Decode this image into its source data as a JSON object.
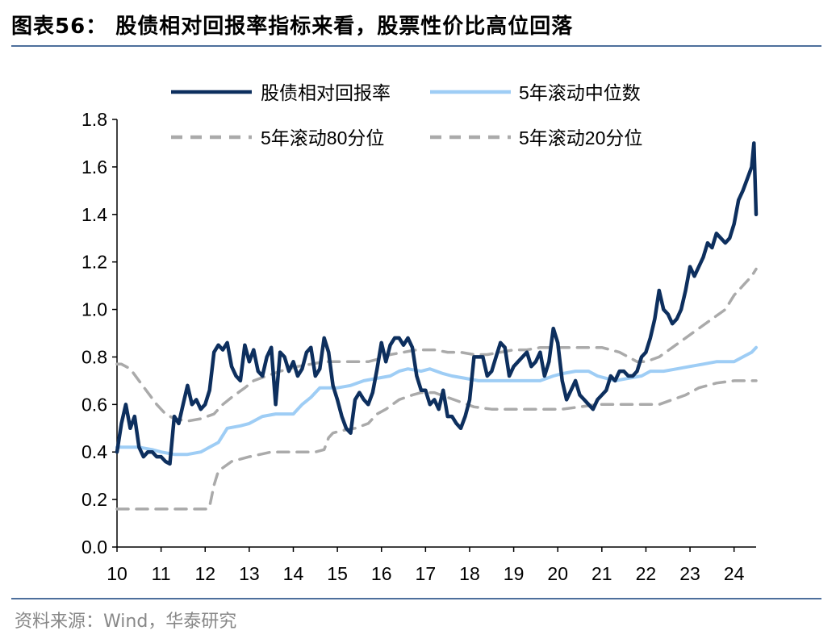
{
  "header": {
    "title": "图表56：  股债相对回报率指标来看，股票性价比高位回落"
  },
  "footer": {
    "source": "资料来源：Wind，华泰研究"
  },
  "chart_data": {
    "type": "line",
    "xlabel": "",
    "ylabel": "",
    "ylim": [
      0.0,
      1.8
    ],
    "xlim": [
      2010.0,
      2024.5
    ],
    "y_ticks": [
      "0.0",
      "0.2",
      "0.4",
      "0.6",
      "0.8",
      "1.0",
      "1.2",
      "1.4",
      "1.6",
      "1.8"
    ],
    "x_ticks": [
      "10",
      "11",
      "12",
      "13",
      "14",
      "15",
      "16",
      "17",
      "18",
      "19",
      "20",
      "21",
      "22",
      "23",
      "24"
    ],
    "grid": false,
    "legend_position": "top",
    "series": [
      {
        "name": "股债相对回报率",
        "color": "#0d2f5e",
        "style": "solid",
        "x": [
          2010.0,
          2010.1,
          2010.2,
          2010.3,
          2010.4,
          2010.5,
          2010.6,
          2010.7,
          2010.8,
          2010.9,
          2011.0,
          2011.1,
          2011.2,
          2011.3,
          2011.4,
          2011.5,
          2011.6,
          2011.7,
          2011.8,
          2011.9,
          2012.0,
          2012.1,
          2012.2,
          2012.3,
          2012.4,
          2012.5,
          2012.6,
          2012.7,
          2012.8,
          2012.9,
          2013.0,
          2013.1,
          2013.2,
          2013.3,
          2013.4,
          2013.5,
          2013.6,
          2013.7,
          2013.8,
          2013.9,
          2014.0,
          2014.1,
          2014.2,
          2014.3,
          2014.4,
          2014.5,
          2014.6,
          2014.7,
          2014.8,
          2014.9,
          2015.0,
          2015.1,
          2015.2,
          2015.3,
          2015.4,
          2015.5,
          2015.6,
          2015.7,
          2015.8,
          2015.9,
          2016.0,
          2016.1,
          2016.2,
          2016.3,
          2016.4,
          2016.5,
          2016.6,
          2016.7,
          2016.8,
          2016.9,
          2017.0,
          2017.1,
          2017.2,
          2017.3,
          2017.4,
          2017.5,
          2017.6,
          2017.7,
          2017.8,
          2017.9,
          2018.0,
          2018.1,
          2018.2,
          2018.3,
          2018.4,
          2018.5,
          2018.6,
          2018.7,
          2018.8,
          2018.9,
          2019.0,
          2019.1,
          2019.2,
          2019.3,
          2019.4,
          2019.5,
          2019.6,
          2019.7,
          2019.8,
          2019.9,
          2020.0,
          2020.1,
          2020.2,
          2020.3,
          2020.4,
          2020.5,
          2020.6,
          2020.7,
          2020.8,
          2020.9,
          2021.0,
          2021.1,
          2021.2,
          2021.3,
          2021.4,
          2021.5,
          2021.6,
          2021.7,
          2021.8,
          2021.9,
          2022.0,
          2022.1,
          2022.2,
          2022.3,
          2022.4,
          2022.5,
          2022.6,
          2022.7,
          2022.8,
          2022.9,
          2023.0,
          2023.1,
          2023.2,
          2023.3,
          2023.4,
          2023.5,
          2023.6,
          2023.7,
          2023.8,
          2023.9,
          2024.0,
          2024.1,
          2024.2,
          2024.3,
          2024.4,
          2024.45,
          2024.5
        ],
        "values": [
          0.4,
          0.52,
          0.6,
          0.5,
          0.55,
          0.42,
          0.38,
          0.4,
          0.4,
          0.38,
          0.38,
          0.36,
          0.35,
          0.55,
          0.52,
          0.6,
          0.68,
          0.6,
          0.62,
          0.58,
          0.6,
          0.66,
          0.82,
          0.85,
          0.83,
          0.86,
          0.76,
          0.72,
          0.7,
          0.85,
          0.78,
          0.83,
          0.74,
          0.72,
          0.8,
          0.84,
          0.6,
          0.82,
          0.8,
          0.74,
          0.78,
          0.72,
          0.75,
          0.82,
          0.84,
          0.72,
          0.75,
          0.88,
          0.82,
          0.68,
          0.62,
          0.55,
          0.5,
          0.48,
          0.62,
          0.65,
          0.62,
          0.6,
          0.65,
          0.75,
          0.86,
          0.78,
          0.85,
          0.88,
          0.88,
          0.85,
          0.88,
          0.84,
          0.72,
          0.66,
          0.66,
          0.6,
          0.62,
          0.58,
          0.66,
          0.55,
          0.55,
          0.52,
          0.5,
          0.55,
          0.62,
          0.8,
          0.8,
          0.8,
          0.72,
          0.74,
          0.8,
          0.86,
          0.84,
          0.72,
          0.76,
          0.78,
          0.8,
          0.82,
          0.76,
          0.78,
          0.82,
          0.72,
          0.78,
          0.92,
          0.86,
          0.7,
          0.62,
          0.66,
          0.7,
          0.64,
          0.62,
          0.6,
          0.58,
          0.62,
          0.64,
          0.66,
          0.72,
          0.7,
          0.74,
          0.74,
          0.72,
          0.72,
          0.74,
          0.8,
          0.82,
          0.88,
          0.96,
          1.08,
          1.0,
          0.98,
          0.94,
          0.96,
          1.0,
          1.08,
          1.18,
          1.14,
          1.18,
          1.22,
          1.28,
          1.26,
          1.32,
          1.3,
          1.28,
          1.3,
          1.36,
          1.46,
          1.5,
          1.55,
          1.6,
          1.7,
          1.4
        ]
      },
      {
        "name": "5年滚动中位数",
        "color": "#9ecdf5",
        "style": "solid",
        "x": [
          2010.0,
          2010.2,
          2010.5,
          2010.8,
          2011.0,
          2011.3,
          2011.6,
          2011.9,
          2012.1,
          2012.3,
          2012.5,
          2012.8,
          2013.0,
          2013.3,
          2013.6,
          2013.8,
          2014.0,
          2014.2,
          2014.4,
          2014.6,
          2014.8,
          2015.0,
          2015.3,
          2015.6,
          2015.9,
          2016.2,
          2016.4,
          2016.6,
          2016.9,
          2017.1,
          2017.4,
          2017.6,
          2017.9,
          2018.2,
          2018.5,
          2018.8,
          2019.0,
          2019.3,
          2019.6,
          2019.9,
          2020.1,
          2020.4,
          2020.7,
          2020.9,
          2021.1,
          2021.3,
          2021.6,
          2021.9,
          2022.1,
          2022.4,
          2022.7,
          2023.0,
          2023.3,
          2023.6,
          2023.9,
          2024.0,
          2024.2,
          2024.4,
          2024.5
        ],
        "values": [
          0.42,
          0.42,
          0.42,
          0.41,
          0.4,
          0.39,
          0.39,
          0.4,
          0.42,
          0.44,
          0.5,
          0.51,
          0.52,
          0.55,
          0.56,
          0.56,
          0.56,
          0.6,
          0.63,
          0.67,
          0.67,
          0.67,
          0.68,
          0.7,
          0.71,
          0.72,
          0.74,
          0.75,
          0.74,
          0.75,
          0.73,
          0.72,
          0.71,
          0.7,
          0.7,
          0.7,
          0.7,
          0.7,
          0.7,
          0.72,
          0.73,
          0.74,
          0.74,
          0.72,
          0.71,
          0.7,
          0.71,
          0.72,
          0.74,
          0.74,
          0.75,
          0.76,
          0.77,
          0.78,
          0.78,
          0.78,
          0.8,
          0.82,
          0.84
        ]
      },
      {
        "name": "5年滚动80分位",
        "color": "#aaaaaa",
        "style": "dashed",
        "x": [
          2010.0,
          2010.1,
          2010.3,
          2010.5,
          2010.7,
          2010.9,
          2011.1,
          2011.3,
          2011.6,
          2011.9,
          2012.2,
          2012.4,
          2012.6,
          2012.9,
          2013.1,
          2013.4,
          2013.7,
          2013.9,
          2014.1,
          2014.4,
          2014.7,
          2015.0,
          2015.3,
          2015.7,
          2015.9,
          2016.2,
          2016.5,
          2016.8,
          2017.0,
          2017.2,
          2017.5,
          2017.8,
          2018.1,
          2018.4,
          2018.7,
          2019.0,
          2019.3,
          2019.6,
          2019.9,
          2020.2,
          2020.5,
          2020.8,
          2021.0,
          2021.2,
          2021.4,
          2021.6,
          2021.8,
          2022.0,
          2022.3,
          2022.6,
          2022.9,
          2023.2,
          2023.5,
          2023.8,
          2024.0,
          2024.2,
          2024.4,
          2024.5
        ],
        "values": [
          0.77,
          0.77,
          0.75,
          0.7,
          0.65,
          0.6,
          0.56,
          0.54,
          0.53,
          0.54,
          0.56,
          0.6,
          0.63,
          0.67,
          0.7,
          0.72,
          0.74,
          0.75,
          0.76,
          0.77,
          0.78,
          0.78,
          0.78,
          0.78,
          0.79,
          0.81,
          0.82,
          0.83,
          0.83,
          0.83,
          0.82,
          0.82,
          0.81,
          0.81,
          0.82,
          0.83,
          0.83,
          0.84,
          0.84,
          0.84,
          0.84,
          0.84,
          0.84,
          0.83,
          0.82,
          0.8,
          0.78,
          0.78,
          0.8,
          0.84,
          0.88,
          0.92,
          0.96,
          1.0,
          1.06,
          1.1,
          1.14,
          1.17
        ]
      },
      {
        "name": "5年滚动20分位",
        "color": "#aaaaaa",
        "style": "dashed",
        "x": [
          2010.0,
          2010.5,
          2011.0,
          2011.5,
          2011.9,
          2012.05,
          2012.1,
          2012.2,
          2012.3,
          2012.6,
          2013.0,
          2013.5,
          2014.0,
          2014.5,
          2014.7,
          2014.8,
          2014.9,
          2015.1,
          2015.4,
          2015.7,
          2015.9,
          2016.1,
          2016.4,
          2016.7,
          2016.9,
          2017.2,
          2017.5,
          2017.8,
          2018.1,
          2018.5,
          2018.9,
          2019.3,
          2019.7,
          2020.1,
          2020.5,
          2020.9,
          2021.3,
          2021.7,
          2022.0,
          2022.3,
          2022.6,
          2022.9,
          2023.2,
          2023.6,
          2024.0,
          2024.5
        ],
        "values": [
          0.16,
          0.16,
          0.16,
          0.16,
          0.16,
          0.16,
          0.17,
          0.26,
          0.32,
          0.36,
          0.38,
          0.4,
          0.4,
          0.4,
          0.41,
          0.46,
          0.48,
          0.49,
          0.5,
          0.52,
          0.56,
          0.58,
          0.62,
          0.64,
          0.65,
          0.65,
          0.63,
          0.61,
          0.59,
          0.58,
          0.58,
          0.58,
          0.58,
          0.58,
          0.59,
          0.6,
          0.6,
          0.6,
          0.6,
          0.6,
          0.62,
          0.64,
          0.67,
          0.69,
          0.7,
          0.7
        ]
      }
    ]
  }
}
